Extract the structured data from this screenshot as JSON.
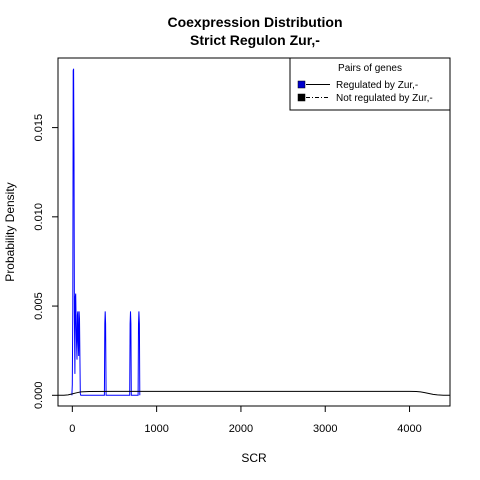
{
  "chart_data": {
    "type": "line",
    "title": "Coexpression Distribution",
    "subtitle": "Strict Regulon Zur,-",
    "xlabel": "SCR",
    "ylabel": "Probability Density",
    "xlim": [
      -170,
      4480
    ],
    "ylim": [
      -0.0006,
      0.0189
    ],
    "x_ticks": [
      0,
      1000,
      2000,
      3000,
      4000
    ],
    "x_tick_labels": [
      "0",
      "1000",
      "2000",
      "3000",
      "4000"
    ],
    "y_ticks": [
      0,
      0.005,
      0.01,
      0.015
    ],
    "y_tick_labels": [
      "0.000",
      "0.005",
      "0.010",
      "0.015"
    ],
    "grid": false,
    "legend": {
      "title": "Pairs of genes",
      "placement": "top-right",
      "entries": [
        "Regulated by  Zur,-",
        "Not regulated by  Zur,-"
      ]
    },
    "series": [
      {
        "name": "Regulated by  Zur,-",
        "color": "#0000ff",
        "line_style": "solid",
        "x": [
          -5,
          0,
          5,
          10,
          15,
          20,
          25,
          30,
          35,
          40,
          45,
          50,
          55,
          60,
          65,
          70,
          75,
          80,
          85,
          90,
          95,
          100,
          380,
          385,
          390,
          395,
          400,
          680,
          685,
          690,
          695,
          700,
          780,
          785,
          790,
          795,
          800
        ],
        "y": [
          0.0,
          0.0006,
          0.0048,
          0.0182,
          0.0183,
          0.0135,
          0.0045,
          0.0012,
          0.0055,
          0.0057,
          0.0042,
          0.003,
          0.002,
          0.0045,
          0.0047,
          0.003,
          0.0022,
          0.0047,
          0.0043,
          0.0022,
          0.0001,
          0.0,
          0.0,
          0.004,
          0.0047,
          0.004,
          0.0,
          0.0,
          0.004,
          0.0047,
          0.004,
          0.0,
          0.0,
          0.004,
          0.0047,
          0.004,
          0.0
        ]
      },
      {
        "name": "Not regulated by  Zur,-",
        "color": "#000000",
        "line_style": "solid",
        "x": [
          -170,
          -100,
          -50,
          0,
          50,
          100,
          200,
          500,
          1000,
          2000,
          3000,
          4000,
          4080,
          4130,
          4180,
          4230,
          4280,
          4330,
          4400,
          4480
        ],
        "y": [
          0.0,
          0.0,
          2e-05,
          8e-05,
          0.00014,
          0.00019,
          0.00021,
          0.00022,
          0.00022,
          0.00022,
          0.00022,
          0.00022,
          0.00021,
          0.00019,
          0.00015,
          0.0001,
          5e-05,
          2e-05,
          0.0,
          0.0
        ]
      }
    ]
  }
}
